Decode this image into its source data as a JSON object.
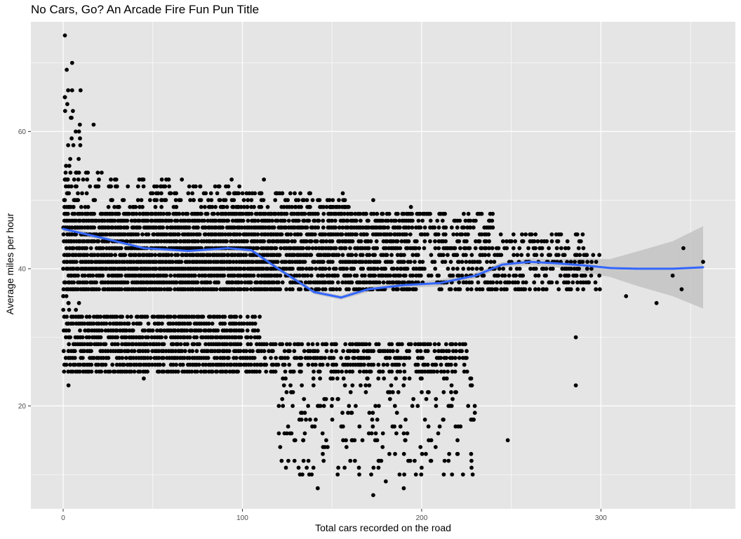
{
  "chart_data": {
    "type": "scatter",
    "title": "No Cars, Go? An Arcade Fire Fun Pun Title",
    "xlabel": "Total cars recorded on the road",
    "ylabel": "Average miles per hour",
    "xlim": [
      -18,
      375
    ],
    "ylim": [
      5,
      76
    ],
    "x_ticks": [
      0,
      100,
      200,
      300
    ],
    "y_ticks": [
      20,
      40,
      60
    ],
    "grid": true,
    "background": "#e5e5e5",
    "gridline_color": "#ffffff",
    "point_color": "#000000",
    "smooth_color": "#3366ff",
    "ribbon_color": "#bdbdbd",
    "point_clusters": [
      {
        "x_range": [
          0,
          290
        ],
        "y_range": [
          37,
          48
        ],
        "note": "dense upper band"
      },
      {
        "x_range": [
          0,
          250
        ],
        "y_range": [
          25,
          33
        ],
        "note": "dense lower band"
      }
    ],
    "outliers": [
      {
        "x": 1,
        "y": 74
      },
      {
        "x": 2,
        "y": 69
      },
      {
        "x": 5,
        "y": 70
      },
      {
        "x": 5,
        "y": 66
      },
      {
        "x": 17,
        "y": 61
      },
      {
        "x": 94,
        "y": 53
      },
      {
        "x": 112,
        "y": 53
      },
      {
        "x": 173,
        "y": 50
      },
      {
        "x": 156,
        "y": 51
      },
      {
        "x": 194,
        "y": 49
      },
      {
        "x": 3,
        "y": 23
      },
      {
        "x": 45,
        "y": 24
      },
      {
        "x": 142,
        "y": 8
      },
      {
        "x": 173,
        "y": 7
      },
      {
        "x": 180,
        "y": 9
      },
      {
        "x": 190,
        "y": 8
      },
      {
        "x": 286,
        "y": 23
      },
      {
        "x": 286,
        "y": 30
      },
      {
        "x": 331,
        "y": 35
      },
      {
        "x": 357,
        "y": 41
      },
      {
        "x": 346,
        "y": 43
      },
      {
        "x": 345,
        "y": 37
      },
      {
        "x": 340,
        "y": 39
      },
      {
        "x": 314,
        "y": 36
      },
      {
        "x": 248,
        "y": 15
      },
      {
        "x": 258,
        "y": 45
      },
      {
        "x": 286,
        "y": 45
      },
      {
        "x": 200,
        "y": 11
      },
      {
        "x": 215,
        "y": 12
      },
      {
        "x": 157,
        "y": 11
      },
      {
        "x": 145,
        "y": 14
      },
      {
        "x": 134,
        "y": 15
      }
    ],
    "series": [
      {
        "type": "smooth",
        "x": [
          0,
          20,
          45,
          70,
          92,
          105,
          120,
          140,
          155,
          170,
          190,
          210,
          230,
          245,
          260,
          275,
          290,
          305,
          320,
          340,
          357
        ],
        "y": [
          45.8,
          44.6,
          43.0,
          42.6,
          43.0,
          42.7,
          40.0,
          36.6,
          35.8,
          37.0,
          37.6,
          37.9,
          39.0,
          40.6,
          41.0,
          40.8,
          40.5,
          40.1,
          40.0,
          40.0,
          40.2
        ],
        "ci_lower": [
          45.2,
          44.3,
          42.8,
          42.4,
          42.8,
          42.4,
          39.7,
          36.3,
          35.5,
          36.6,
          37.2,
          37.4,
          38.6,
          40.2,
          40.5,
          40.2,
          39.5,
          38.8,
          37.5,
          36.0,
          34.2
        ],
        "ci_upper": [
          46.4,
          44.9,
          43.2,
          42.8,
          43.2,
          43.0,
          40.3,
          36.9,
          36.1,
          37.4,
          38.0,
          38.4,
          39.4,
          41.0,
          41.5,
          41.4,
          41.5,
          41.4,
          42.5,
          44.0,
          46.2
        ]
      }
    ]
  }
}
